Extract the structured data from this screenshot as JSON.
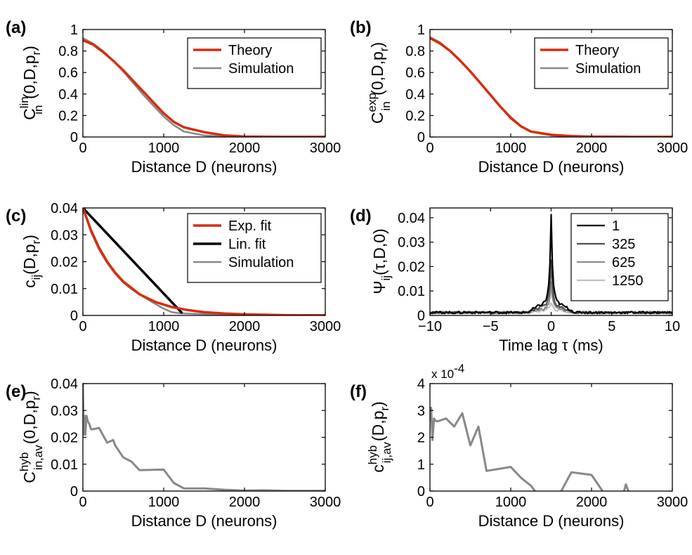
{
  "colors": {
    "theory": "#d62d10",
    "simulation": "#888888",
    "lin_fit": "#000000",
    "lag_1": "#000000",
    "lag_325": "#505050",
    "lag_625": "#8c8c8c",
    "lag_1250": "#c0c0c0"
  },
  "chart_data": [
    {
      "id": "a",
      "panel_label": "(a)",
      "type": "line",
      "ylabel": {
        "base": "C",
        "sup": "lin",
        "sub": "in",
        "args_pre": "(0,D,p",
        "args_sub": "r",
        "args_post": ")"
      },
      "xlabel": "Distance D (neurons)",
      "xlim": [
        0,
        3000
      ],
      "ylim": [
        0,
        1
      ],
      "xticks": [
        0,
        1000,
        2000,
        3000
      ],
      "yticks": [
        0,
        0.2,
        0.4,
        0.6,
        0.8,
        1
      ],
      "ytick_labels": [
        "0",
        "0.2",
        "0.4",
        "0.6",
        "0.8",
        "1"
      ],
      "legend": {
        "position": "top-right"
      },
      "series": [
        {
          "name": "Theory",
          "color_key": "theory",
          "width": 3.5,
          "x": [
            0,
            125,
            250,
            375,
            500,
            625,
            750,
            875,
            1000,
            1125,
            1250,
            1500,
            1750,
            2000,
            2500,
            3000
          ],
          "y": [
            0.9,
            0.86,
            0.79,
            0.71,
            0.62,
            0.52,
            0.42,
            0.32,
            0.22,
            0.14,
            0.09,
            0.045,
            0.015,
            0.004,
            0.002,
            0.002
          ]
        },
        {
          "name": "Simulation",
          "color_key": "simulation",
          "width": 2.5,
          "x": [
            0,
            125,
            250,
            375,
            500,
            625,
            750,
            875,
            1000,
            1125,
            1250,
            1500,
            1750,
            2000,
            2500,
            3000
          ],
          "y": [
            0.92,
            0.87,
            0.8,
            0.71,
            0.61,
            0.5,
            0.39,
            0.29,
            0.19,
            0.11,
            0.05,
            0.015,
            0.004,
            0.001,
            0.001,
            0.001
          ]
        }
      ]
    },
    {
      "id": "b",
      "panel_label": "(b)",
      "type": "line",
      "ylabel": {
        "base": "C",
        "sup": "exp",
        "sub": "in",
        "args_pre": "(0,D,p",
        "args_sub": "r",
        "args_post": ")"
      },
      "xlabel": "Distance D (neurons)",
      "xlim": [
        0,
        3000
      ],
      "ylim": [
        0,
        1
      ],
      "xticks": [
        0,
        1000,
        2000,
        3000
      ],
      "yticks": [
        0,
        0.2,
        0.4,
        0.6,
        0.8,
        1
      ],
      "ytick_labels": [
        "0",
        "0.2",
        "0.4",
        "0.6",
        "0.8",
        "1"
      ],
      "legend": {
        "position": "top-right"
      },
      "series": [
        {
          "name": "Theory",
          "color_key": "theory",
          "width": 3.5,
          "x": [
            0,
            125,
            250,
            375,
            500,
            625,
            750,
            875,
            1000,
            1125,
            1250,
            1500,
            1750,
            2000,
            2500,
            3000
          ],
          "y": [
            0.92,
            0.87,
            0.8,
            0.71,
            0.61,
            0.5,
            0.39,
            0.28,
            0.18,
            0.1,
            0.05,
            0.02,
            0.008,
            0.003,
            0.002,
            0.001
          ]
        },
        {
          "name": "Simulation",
          "color_key": "simulation",
          "width": 2.5,
          "x": [
            0,
            125,
            250,
            375,
            500,
            625,
            750,
            875,
            1000,
            1125,
            1250,
            1500,
            1750,
            2000,
            2500,
            3000
          ],
          "y": [
            0.93,
            0.88,
            0.8,
            0.71,
            0.61,
            0.5,
            0.39,
            0.28,
            0.17,
            0.1,
            0.05,
            0.015,
            0.004,
            0.001,
            0.001,
            0.001
          ]
        }
      ]
    },
    {
      "id": "c",
      "panel_label": "(c)",
      "type": "line",
      "ylabel": {
        "base": "c",
        "sup": "",
        "sub": "ij",
        "args_pre": "(D,p",
        "args_sub": "r",
        "args_post": ")"
      },
      "xlabel": "Distance D (neurons)",
      "xlim": [
        0,
        3000
      ],
      "ylim": [
        0,
        0.04
      ],
      "xticks": [
        0,
        1000,
        2000,
        3000
      ],
      "yticks": [
        0,
        0.01,
        0.02,
        0.03,
        0.04
      ],
      "ytick_labels": [
        "0",
        "0.01",
        "0.02",
        "0.03",
        "0.04"
      ],
      "legend": {
        "position": "top-right"
      },
      "series": [
        {
          "name": "Exp. fit",
          "color_key": "theory",
          "width": 3.5,
          "x": [
            0,
            100,
            200,
            300,
            400,
            500,
            700,
            900,
            1100,
            1300,
            1500,
            1750,
            2000,
            2500,
            3000
          ],
          "y": [
            0.04,
            0.0317,
            0.0252,
            0.02,
            0.0159,
            0.0126,
            0.0079,
            0.005,
            0.0031,
            0.002,
            0.0012,
            0.0007,
            0.0004,
            0.0001,
            3e-05
          ]
        },
        {
          "name": "Lin. fit",
          "color_key": "lin_fit",
          "width": 3.5,
          "x": [
            0,
            1230
          ],
          "y": [
            0.04,
            0.0008
          ]
        },
        {
          "name": "Simulation",
          "color_key": "simulation",
          "width": 2.5,
          "x": [
            0,
            100,
            200,
            300,
            400,
            500,
            600,
            700,
            800,
            900,
            1000,
            1100,
            1200,
            1400,
            1700,
            2000,
            2500,
            3000
          ],
          "y": [
            0.04,
            0.031,
            0.0245,
            0.0195,
            0.0155,
            0.0122,
            0.0098,
            0.0078,
            0.006,
            0.0042,
            0.0025,
            0.0012,
            0.0008,
            0.0006,
            0.0004,
            0.0003,
            0.0002,
            0.0002
          ]
        }
      ]
    },
    {
      "id": "d",
      "panel_label": "(d)",
      "type": "line",
      "ylabel": {
        "base": "Ψ",
        "sup": "",
        "sub": "ij",
        "args_pre": "(τ,D,0)",
        "args_sub": "",
        "args_post": ""
      },
      "xlabel": "Time lag τ (ms)",
      "xlim": [
        -10,
        10
      ],
      "ylim": [
        0,
        0.044
      ],
      "xticks": [
        -10,
        -5,
        0,
        5,
        10
      ],
      "xtick_labels": [
        "−10",
        "−5",
        "0",
        "5",
        "10"
      ],
      "yticks": [
        0,
        0.01,
        0.02,
        0.03,
        0.04
      ],
      "ytick_labels": [
        "0",
        "0.01",
        "0.02",
        "0.03",
        "0.04"
      ],
      "legend": {
        "position": "top-right"
      },
      "series": [
        {
          "name": "1",
          "color_key": "lag_1",
          "width": 2.2,
          "peak": 0.041,
          "shoulder": 0.0055,
          "base": 0.0012,
          "support": 2
        },
        {
          "name": "325",
          "color_key": "lag_325",
          "width": 2.2,
          "peak": 0.023,
          "shoulder": 0.0035,
          "base": 0.0012,
          "support": 2
        },
        {
          "name": "625",
          "color_key": "lag_625",
          "width": 2.2,
          "peak": 0.0135,
          "shoulder": 0.0022,
          "base": 0.0012,
          "support": 2
        },
        {
          "name": "1250",
          "color_key": "lag_1250",
          "width": 2.2,
          "peak": 0.0055,
          "shoulder": 0.0014,
          "base": 0.0012,
          "support": 2
        }
      ]
    },
    {
      "id": "e",
      "panel_label": "(e)",
      "type": "line",
      "ylabel": {
        "base": "C",
        "sup": "hyb",
        "sub": "in,av",
        "args_pre": "(0,D,p",
        "args_sub": "r",
        "args_post": ")"
      },
      "xlabel": "Distance D (neurons)",
      "xlim": [
        0,
        3000
      ],
      "ylim": [
        0,
        0.04
      ],
      "xticks": [
        0,
        1000,
        2000,
        3000
      ],
      "yticks": [
        0,
        0.01,
        0.02,
        0.03,
        0.04
      ],
      "ytick_labels": [
        "0",
        "0.01",
        "0.02",
        "0.03",
        "0.04"
      ],
      "series": [
        {
          "name": "",
          "color_key": "simulation",
          "width": 3,
          "x": [
            0,
            10,
            20,
            30,
            45,
            60,
            80,
            100,
            125,
            200,
            300,
            375,
            400,
            500,
            600,
            700,
            1000,
            1125,
            1250,
            1500,
            1750,
            2000,
            2250,
            2500,
            2750,
            3000
          ],
          "y": [
            0.04,
            0.021,
            0.028,
            0.021,
            0.028,
            0.026,
            0.025,
            0.023,
            0.023,
            0.0235,
            0.018,
            0.019,
            0.017,
            0.0125,
            0.011,
            0.0078,
            0.008,
            0.003,
            0.001,
            0.001,
            0.0005,
            0.0002,
            0.0003,
            0.0001,
            0.0001,
            0.0001
          ]
        }
      ]
    },
    {
      "id": "f",
      "panel_label": "(f)",
      "type": "line",
      "ylabel": {
        "base": "c",
        "sup": "hyb",
        "sub": "ij,av",
        "args_pre": "(D,p",
        "args_sub": "r",
        "args_post": ")"
      },
      "xlabel": "Distance D (neurons)",
      "xlim": [
        0,
        3000
      ],
      "ylim": [
        0,
        4
      ],
      "xticks": [
        0,
        1000,
        2000,
        3000
      ],
      "yticks": [
        0,
        1,
        2,
        3,
        4
      ],
      "ytick_labels": [
        "0",
        "1",
        "2",
        "3",
        "4"
      ],
      "multiplier": {
        "base": "x 10",
        "exp": "-4"
      },
      "series": [
        {
          "name": "",
          "color_key": "simulation",
          "width": 3,
          "x": [
            0,
            15,
            30,
            50,
            75,
            100,
            200,
            300,
            400,
            500,
            600,
            700,
            1000,
            1125,
            1250,
            1375,
            1500,
            1625,
            1750,
            2000,
            2125,
            2250,
            2375,
            2425,
            2480,
            2550,
            3000
          ],
          "y": [
            2.6,
            3.1,
            1.9,
            2.7,
            2.6,
            2.6,
            2.7,
            2.4,
            2.9,
            1.7,
            2.4,
            0.75,
            0.9,
            0.5,
            0.2,
            -0.3,
            -0.3,
            0.0,
            0.7,
            0.6,
            0.05,
            -0.5,
            -0.3,
            0.25,
            -0.2,
            -0.4,
            -0.4
          ]
        }
      ]
    }
  ]
}
